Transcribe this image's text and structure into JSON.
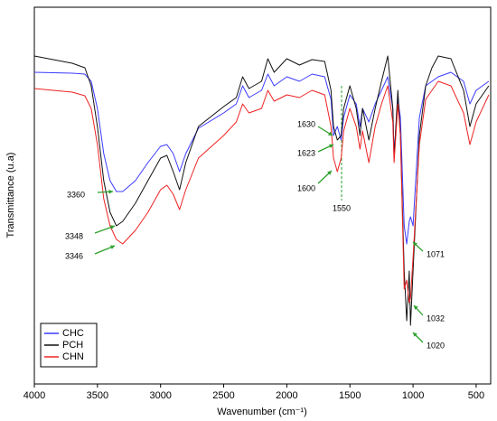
{
  "chart_data": {
    "type": "line",
    "x_label": "Wavenumber (cm⁻¹)",
    "y_label": "Transmittance (u.a)",
    "x": [
      4000,
      3700,
      3600,
      3550,
      3500,
      3450,
      3400,
      3350,
      3300,
      3200,
      3100,
      3000,
      2950,
      2900,
      2850,
      2800,
      2700,
      2500,
      2400,
      2350,
      2300,
      2200,
      2150,
      2100,
      2000,
      1900,
      1800,
      1700,
      1650,
      1630,
      1600,
      1570,
      1550,
      1500,
      1450,
      1420,
      1400,
      1350,
      1300,
      1250,
      1200,
      1160,
      1150,
      1120,
      1100,
      1070,
      1050,
      1030,
      1020,
      1000,
      950,
      900,
      850,
      800,
      700,
      600,
      550,
      500,
      400
    ],
    "series": [
      {
        "name": "CHC",
        "color": "#3b3bff",
        "values": [
          345,
          344,
          343,
          335,
          305,
          255,
          225,
          213,
          213,
          225,
          245,
          263,
          265,
          255,
          235,
          255,
          283,
          300,
          310,
          330,
          317,
          325,
          343,
          330,
          340,
          335,
          343,
          340,
          315,
          275,
          285,
          270,
          295,
          320,
          310,
          285,
          305,
          290,
          310,
          325,
          340,
          305,
          255,
          315,
          295,
          175,
          155,
          180,
          185,
          175,
          295,
          330,
          335,
          340,
          345,
          335,
          310,
          325,
          335
        ]
      },
      {
        "name": "PCH",
        "color": "#111111",
        "values": [
          363,
          355,
          350,
          330,
          285,
          225,
          190,
          175,
          180,
          200,
          225,
          250,
          253,
          235,
          215,
          245,
          285,
          307,
          317,
          340,
          327,
          335,
          360,
          345,
          360,
          353,
          359,
          357,
          325,
          285,
          270,
          275,
          305,
          330,
          305,
          275,
          305,
          270,
          305,
          335,
          363,
          305,
          250,
          325,
          275,
          125,
          70,
          125,
          65,
          125,
          275,
          330,
          350,
          363,
          360,
          325,
          285,
          310,
          330
        ]
      },
      {
        "name": "CHN",
        "color": "#ee2222",
        "values": [
          327,
          323,
          319,
          305,
          265,
          205,
          175,
          160,
          155,
          170,
          190,
          215,
          220,
          210,
          193,
          215,
          250,
          275,
          290,
          310,
          300,
          305,
          325,
          313,
          320,
          317,
          325,
          320,
          285,
          250,
          235,
          250,
          280,
          305,
          285,
          260,
          280,
          245,
          285,
          310,
          330,
          290,
          245,
          310,
          275,
          105,
          115,
          90,
          95,
          140,
          265,
          315,
          325,
          335,
          330,
          300,
          265,
          290,
          320
        ]
      }
    ],
    "xlim": [
      4000,
      385
    ],
    "xticks": [
      4000,
      3500,
      3000,
      2500,
      2000,
      1500,
      1000,
      500
    ],
    "ylim": [
      0,
      417
    ],
    "legend": "lower left",
    "annotations": [
      "3360",
      "3348",
      "3346",
      "1630",
      "1623",
      "1600",
      "1550",
      "1071",
      "1032",
      "1020"
    ]
  }
}
